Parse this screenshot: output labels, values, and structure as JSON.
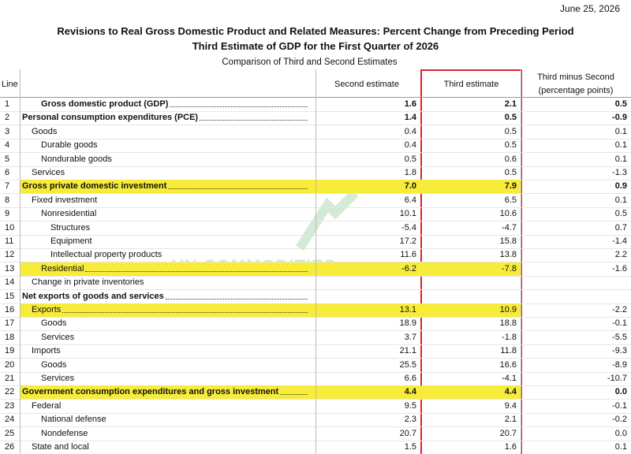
{
  "header": {
    "date": "June 25, 2026",
    "title_line1": "Revisions to Real Gross Domestic Product and Related Measures: Percent Change from Preceding Period",
    "title_line2": "Third Estimate of GDP for the First Quarter of 2026",
    "subtitle": "Comparison of Third and Second Estimates"
  },
  "table": {
    "columns": [
      "Line",
      "Second estimate",
      "Third estimate",
      "Third minus Second",
      "(percentage points)"
    ],
    "rows": [
      [
        "1",
        "Gross domestic product (GDP)",
        "1.6",
        "2.1",
        "0.5"
      ],
      [
        "2",
        "Personal consumption expenditures (PCE)",
        "1.4",
        "0.5",
        "-0.9"
      ],
      [
        "3",
        "Goods",
        "0.4",
        "0.5",
        "0.1"
      ],
      [
        "4",
        "Durable goods",
        "0.4",
        "0.5",
        "0.1"
      ],
      [
        "5",
        "Nondurable goods",
        "0.5",
        "0.6",
        "0.1"
      ],
      [
        "6",
        "Services",
        "1.8",
        "0.5",
        "-1.3"
      ],
      [
        "7",
        "Gross private domestic investment",
        "7.0",
        "7.9",
        "0.9"
      ],
      [
        "8",
        "Fixed investment",
        "6.4",
        "6.5",
        "0.1"
      ],
      [
        "9",
        "Nonresidential",
        "10.1",
        "10.6",
        "0.5"
      ],
      [
        "10",
        "Structures",
        "-5.4",
        "-4.7",
        "0.7"
      ],
      [
        "11",
        "Equipment",
        "17.2",
        "15.8",
        "-1.4"
      ],
      [
        "12",
        "Intellectual property products",
        "11.6",
        "13.8",
        "2.2"
      ],
      [
        "13",
        "Residential",
        "-6.2",
        "-7.8",
        "-1.6"
      ],
      [
        "14",
        "Change in private inventories",
        null,
        null,
        null
      ],
      [
        "15",
        "Net exports of goods and services",
        null,
        null,
        null
      ],
      [
        "16",
        "Exports",
        "13.1",
        "10.9",
        "-2.2"
      ],
      [
        "17",
        "Goods",
        "18.9",
        "18.8",
        "-0.1"
      ],
      [
        "18",
        "Services",
        "3.7",
        "-1.8",
        "-5.5"
      ],
      [
        "19",
        "Imports",
        "21.1",
        "11.8",
        "-9.3"
      ],
      [
        "20",
        "Goods",
        "25.5",
        "16.6",
        "-8.9"
      ],
      [
        "21",
        "Services",
        "6.6",
        "-4.1",
        "-10.7"
      ],
      [
        "22",
        "Government consumption expenditures and gross investment",
        "4.4",
        "4.4",
        "0.0"
      ],
      [
        "23",
        "Federal",
        "9.5",
        "9.4",
        "-0.1"
      ],
      [
        "24",
        "National defense",
        "2.3",
        "2.1",
        "-0.2"
      ],
      [
        "25",
        "Nondefense",
        "20.7",
        "20.7",
        "0.0"
      ],
      [
        "26",
        "State and local",
        "1.5",
        "1.6",
        "0.1"
      ]
    ]
  },
  "watermark": "VN COMMODITIES"
}
